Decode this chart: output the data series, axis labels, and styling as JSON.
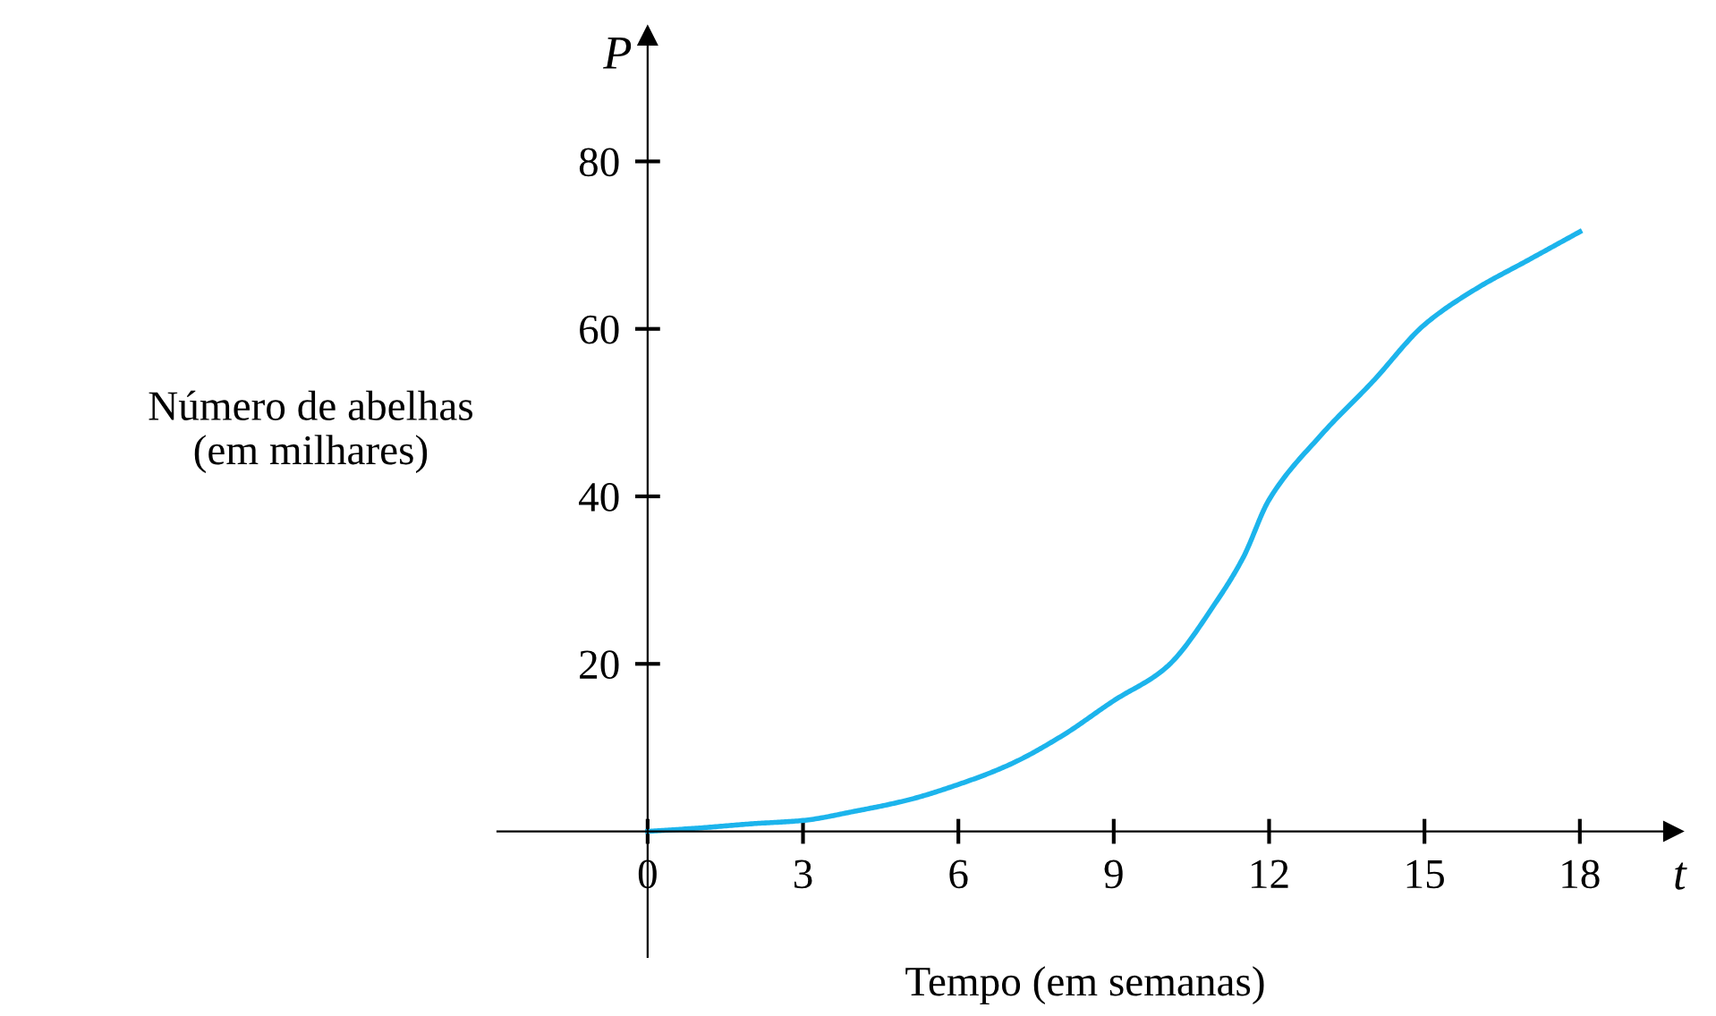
{
  "chart_data": {
    "type": "line",
    "xlabel": "Tempo (em semanas)",
    "ylabel": "Número de abelhas\n(em milhares)",
    "annotations": [
      "P",
      "t"
    ],
    "x": [
      0,
      1,
      2,
      3,
      4,
      5,
      6,
      7,
      8,
      9,
      10,
      11,
      11.5,
      12,
      13,
      14,
      15,
      16,
      17,
      18
    ],
    "series": [
      {
        "color": "#1cb4ec",
        "values": [
          0,
          0.4,
          0.9,
          1.3,
          2.4,
          3.7,
          5.6,
          8,
          11.4,
          15.6,
          19.5,
          27.6,
          32.7,
          39.6,
          47.3,
          53.7,
          60.5,
          64.8,
          68.2,
          71.6
        ]
      }
    ],
    "xlim": [
      -2.9,
      19.8
    ],
    "ylim": [
      -15,
      95
    ],
    "xticks": [
      0,
      3,
      6,
      9,
      12,
      15,
      18
    ],
    "yticks": [
      20,
      40,
      60,
      80
    ],
    "grid": false,
    "legend": false,
    "marker": "none",
    "line_style": "solid"
  }
}
